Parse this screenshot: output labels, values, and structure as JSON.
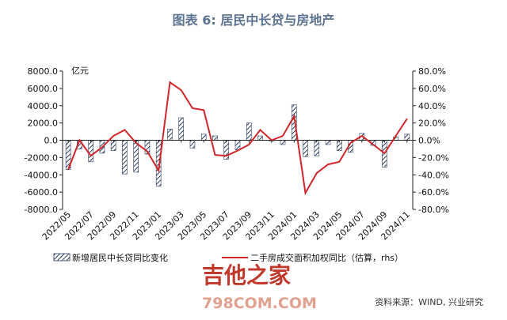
{
  "chart_title": "图表 6:  居民中长贷与房地产",
  "unit_left": "亿元",
  "source": "资料来源：WIND, 兴业研究",
  "watermark": {
    "main": "吉他之家",
    "sub": "798COM.COM"
  },
  "colors": {
    "title": "#5b7390",
    "bar_stroke": "#2c3e60",
    "line": "#d0262a",
    "axis": "#222222"
  },
  "chart_data": {
    "type": "bar+line",
    "categories": [
      "2022/05",
      "2022/06",
      "2022/07",
      "2022/08",
      "2022/09",
      "2022/10",
      "2022/11",
      "2022/12",
      "2023/01",
      "2023/02",
      "2023/03",
      "2023/04",
      "2023/05",
      "2023/06",
      "2023/07",
      "2023/08",
      "2023/09",
      "2023/10",
      "2023/11",
      "2023/12",
      "2024/01",
      "2024/02",
      "2024/03",
      "2024/04",
      "2024/05",
      "2024/06",
      "2024/07",
      "2024/08",
      "2024/09",
      "2024/10",
      "2024/11"
    ],
    "x_tick_labels": [
      "2022/05",
      "2022/07",
      "2022/09",
      "2022/11",
      "2023/01",
      "2023/03",
      "2023/05",
      "2023/07",
      "2023/09",
      "2023/11",
      "2024/01",
      "2024/03",
      "2024/05",
      "2024/07",
      "2024/09",
      "2024/11"
    ],
    "series": [
      {
        "name": "新增居民中长贷同比变化",
        "type": "bar",
        "axis": "left",
        "values": [
          -3400,
          -1000,
          -2500,
          -1500,
          -1200,
          -3900,
          -3700,
          -1600,
          -5300,
          1300,
          2600,
          -900,
          700,
          500,
          -2200,
          -1100,
          2000,
          500,
          -100,
          -500,
          4100,
          -1900,
          -1800,
          -500,
          -1200,
          -1400,
          800,
          -600,
          -3100,
          400,
          700
        ]
      },
      {
        "name": "二手房成交面积加权同比（估算，rhs）",
        "type": "line",
        "axis": "right",
        "values": [
          -34,
          0,
          -18,
          -8,
          5,
          12,
          -3,
          -13,
          -35,
          67,
          58,
          37,
          35,
          -17,
          -18,
          -12,
          -5,
          12,
          0,
          5,
          28,
          -61,
          -38,
          -28,
          -25,
          -3,
          5,
          -5,
          -15,
          5,
          25
        ]
      }
    ],
    "y_left": {
      "min": -8000,
      "max": 8000,
      "ticks": [
        "8000.0",
        "6000.0",
        "4000.0",
        "2000.0",
        "0.0",
        "-2000.0",
        "-4000.0",
        "-6000.0",
        "-8000.0"
      ]
    },
    "y_right": {
      "min": -80,
      "max": 80,
      "ticks": [
        "80.0%",
        "60.0%",
        "40.0%",
        "20.0%",
        "0.0%",
        "-20.0%",
        "-40.0%",
        "-60.0%",
        "-80.0%"
      ]
    },
    "legend_position": "bottom"
  }
}
